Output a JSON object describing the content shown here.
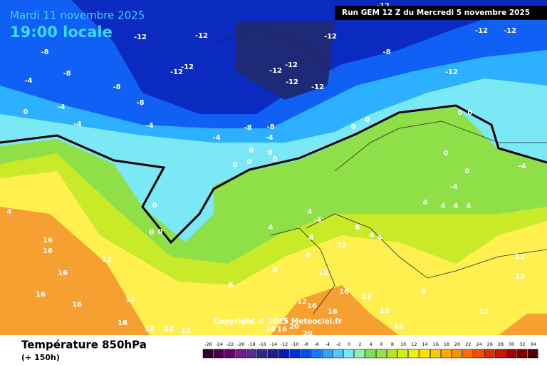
{
  "header": {
    "date": "Mardi 11 novembre 2025",
    "time": "19:00 locale",
    "run": "Run GEM 12 Z du Mercredi 5 novembre 2025"
  },
  "map": {
    "copyright": "Copyright © 2025 Meteociel.fr",
    "labels": [
      "-12",
      "-12",
      "-12",
      "-12",
      "-12",
      "-12",
      "-12",
      "-12",
      "-12",
      "-12",
      "-12",
      "-12",
      "-12",
      "-12",
      "-12",
      "-8",
      "-8",
      "-8",
      "-8",
      "-8",
      "-8",
      "-8",
      "-4",
      "-4",
      "-4",
      "-4",
      "-4",
      "-4",
      "-4",
      "-4",
      "-4",
      "0",
      "0",
      "0",
      "0",
      "0",
      "0",
      "0",
      "0",
      "0",
      "0",
      "0",
      "0",
      "0",
      "0",
      "0",
      "4",
      "4",
      "4",
      "4",
      "4",
      "4",
      "4",
      "4",
      "4",
      "8",
      "8",
      "8",
      "8",
      "8",
      "8",
      "12",
      "12",
      "12",
      "12",
      "12",
      "12",
      "12",
      "12",
      "12",
      "12",
      "12",
      "12",
      "12",
      "12",
      "16",
      "16",
      "16",
      "16",
      "16",
      "16",
      "16",
      "16",
      "16",
      "16",
      "16",
      "20",
      "20"
    ]
  },
  "footer": {
    "title": "Température 850hPa",
    "lead": "(+ 150h)"
  },
  "legend": {
    "values": [
      -26,
      -24,
      -22,
      -20,
      -18,
      -16,
      -14,
      -12,
      -10,
      -8,
      -6,
      -4,
      -2,
      0,
      2,
      4,
      6,
      8,
      10,
      12,
      14,
      16,
      18,
      20,
      22,
      24,
      26,
      28,
      30,
      32,
      34
    ],
    "colors": [
      "#2a0030",
      "#4a0050",
      "#6a0070",
      "#7a1a8a",
      "#5a2a90",
      "#302a8a",
      "#1a208a",
      "#0a1ab0",
      "#0030d8",
      "#0050f0",
      "#1478ff",
      "#30a0ff",
      "#50c8ff",
      "#78e8f0",
      "#90f0b0",
      "#7ae060",
      "#96e040",
      "#b4e628",
      "#d4ee10",
      "#f0f000",
      "#ffe000",
      "#ffc800",
      "#ffa800",
      "#ff8c00",
      "#ff6e00",
      "#f05000",
      "#e03000",
      "#c81800",
      "#a00000",
      "#800000",
      "#500000"
    ]
  }
}
